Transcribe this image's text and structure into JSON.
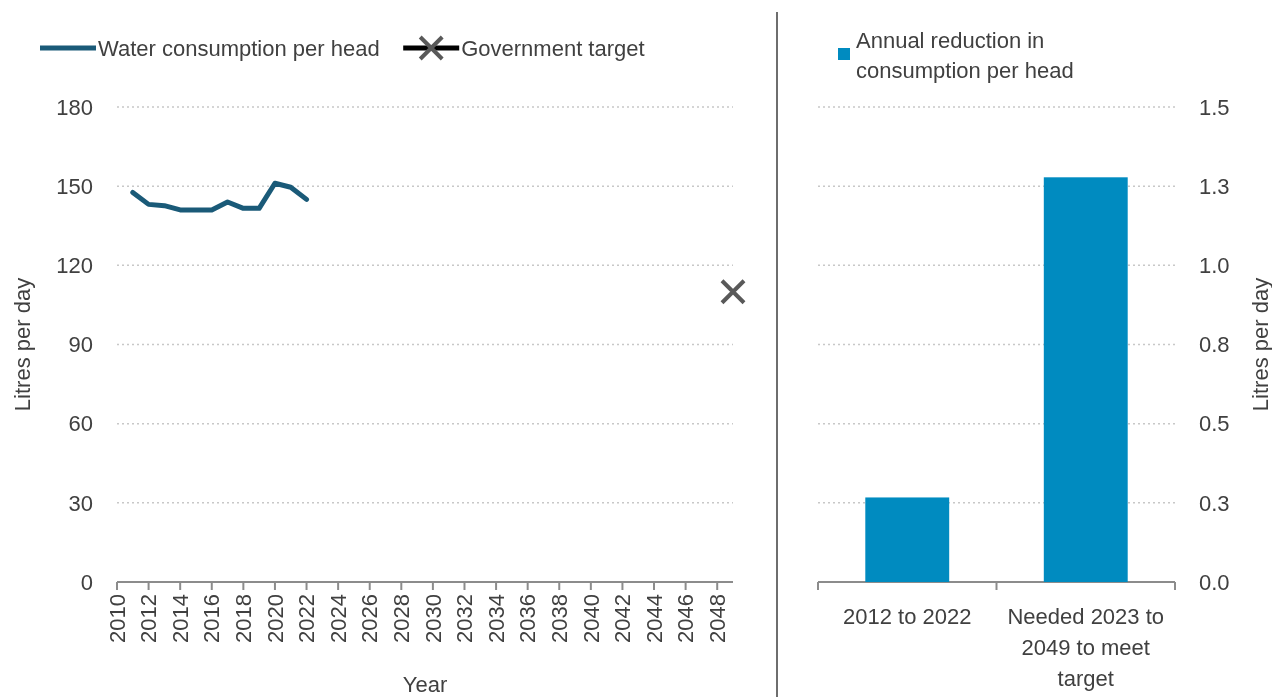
{
  "chart_data": [
    {
      "type": "line",
      "xlabel": "Year",
      "ylabel": "Litres per day",
      "xlim": [
        2010,
        2049
      ],
      "xticks": [
        2010,
        2012,
        2014,
        2016,
        2018,
        2020,
        2022,
        2024,
        2026,
        2028,
        2030,
        2032,
        2034,
        2036,
        2038,
        2040,
        2042,
        2044,
        2046,
        2048
      ],
      "ylim": [
        0,
        180
      ],
      "yticks": [
        0,
        30,
        60,
        90,
        120,
        150,
        180
      ],
      "grid": "y",
      "legend": "top",
      "series": [
        {
          "name": "Water consumption per head",
          "color": "#1a5a78",
          "x": [
            2011,
            2012,
            2013,
            2014,
            2015,
            2016,
            2017,
            2018,
            2019,
            2020,
            2021,
            2022
          ],
          "values": [
            147.6,
            143.1,
            142.6,
            141,
            141,
            141,
            144,
            141.6,
            141.6,
            151.1,
            149.6,
            145
          ]
        },
        {
          "name": "Government target",
          "type": "scatter",
          "marker": "cross",
          "color": "#595959",
          "x": [
            2049
          ],
          "values": [
            110
          ]
        }
      ]
    },
    {
      "type": "bar",
      "ylabel": "Litres per day",
      "categories": [
        "2012 to 2022",
        "Needed 2023 to 2049 to meet target"
      ],
      "ylim": [
        0,
        1.5
      ],
      "yticks": [
        {
          "value": 0,
          "label": "0.0"
        },
        {
          "value": 0.25,
          "label": "0.3"
        },
        0.5,
        {
          "value": 0.75,
          "label": "0.8"
        },
        {
          "value": 1,
          "label": "1.0"
        },
        {
          "value": 1.25,
          "label": "1.3"
        },
        1.5
      ],
      "grid": "y",
      "legend": "top",
      "series": [
        {
          "name": "Annual reduction in consumption per head",
          "color": "#008bc0",
          "values": [
            0.267,
            1.278
          ]
        }
      ]
    }
  ]
}
